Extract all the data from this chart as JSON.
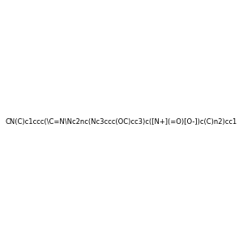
{
  "smiles": "CN(C)c1ccc(\\C=N\\Nc2nc(Nc3ccc(OC)cc3)c([N+](=O)[O-])c(C)n2)cc1",
  "title": "",
  "bg_color": "#e8e8e8",
  "img_size": [
    300,
    300
  ]
}
